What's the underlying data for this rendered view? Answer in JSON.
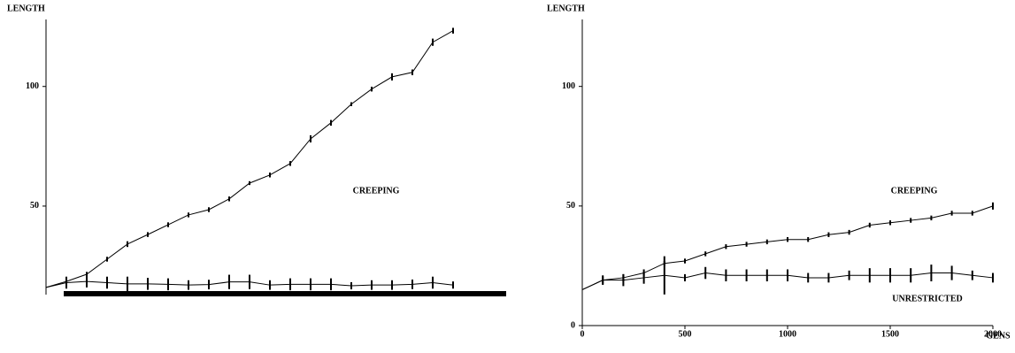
{
  "chart_data": [
    {
      "type": "line",
      "ylabel": "LENGTH",
      "xlim": [
        0,
        2000
      ],
      "ylim": [
        13,
        128
      ],
      "yticks": [
        50,
        100
      ],
      "x": [
        0,
        100,
        200,
        300,
        400,
        500,
        600,
        700,
        800,
        900,
        1000,
        1100,
        1200,
        1300,
        1400,
        1500,
        1600,
        1700,
        1800,
        1900,
        2000
      ],
      "series": [
        {
          "color": "#000000",
          "values": [
            16,
            18.5,
            21.5,
            27.8,
            34.1,
            38.1,
            42.2,
            46.3,
            48.5,
            53,
            59.6,
            63,
            67.8,
            78.1,
            84.8,
            92.6,
            98.9,
            104,
            105.9,
            118.5,
            123.3
          ],
          "errors": [
            0,
            1.5,
            1,
            1,
            1.2,
            1,
            1,
            1,
            1,
            1,
            0.8,
            1,
            1,
            1.5,
            1.2,
            0.8,
            1,
            1.5,
            1.2,
            1.5,
            1.2
          ]
        },
        {
          "color": "#000000",
          "values": [
            16,
            18,
            18.5,
            18,
            17.5,
            17.5,
            17.3,
            17,
            17.2,
            18.3,
            18.3,
            17,
            17.3,
            17.3,
            17.3,
            16.7,
            17,
            17,
            17.3,
            18,
            17
          ],
          "errors": [
            0,
            2.5,
            2.5,
            2.5,
            3,
            2.5,
            2.5,
            2,
            2,
            3,
            3,
            2,
            2.5,
            2.5,
            2.5,
            1.5,
            2,
            2,
            2,
            2.5,
            1.5
          ]
        }
      ],
      "annotations": [
        "CREEPING"
      ]
    },
    {
      "type": "line",
      "ylabel": "LENGTH",
      "xlabel": "GENS",
      "xlim": [
        0,
        2000
      ],
      "ylim": [
        0,
        128
      ],
      "yticks": [
        0,
        50,
        100
      ],
      "xticks": [
        0,
        500,
        1000,
        1500,
        2000
      ],
      "x": [
        0,
        100,
        200,
        300,
        400,
        500,
        600,
        700,
        800,
        900,
        1000,
        1100,
        1200,
        1300,
        1400,
        1500,
        1600,
        1700,
        1800,
        1900,
        2000
      ],
      "series": [
        {
          "color": "#000000",
          "values": [
            15,
            19,
            20,
            22,
            26,
            27,
            30,
            33,
            34,
            35,
            36,
            36,
            38,
            39,
            42,
            43,
            44,
            45,
            47,
            47,
            50
          ],
          "errors": [
            0,
            1.5,
            1.5,
            1.5,
            1,
            1,
            1,
            1,
            1,
            1,
            1,
            1,
            1,
            1,
            1,
            1,
            1,
            1,
            1,
            1,
            1.5
          ]
        },
        {
          "color": "#000000",
          "values": [
            15,
            19,
            19,
            20,
            21,
            20,
            22,
            21,
            21,
            21,
            21,
            20,
            20,
            21,
            21,
            21,
            21,
            22,
            22,
            21,
            20
          ],
          "errors": [
            0,
            2,
            2.5,
            2.5,
            8,
            1.5,
            2.5,
            2.5,
            2.5,
            2.5,
            2.5,
            2,
            2,
            2,
            3,
            3,
            3,
            3.5,
            3,
            2,
            2
          ]
        }
      ],
      "annotations": [
        "CREEPING",
        "UNRESTRICTED"
      ]
    }
  ]
}
